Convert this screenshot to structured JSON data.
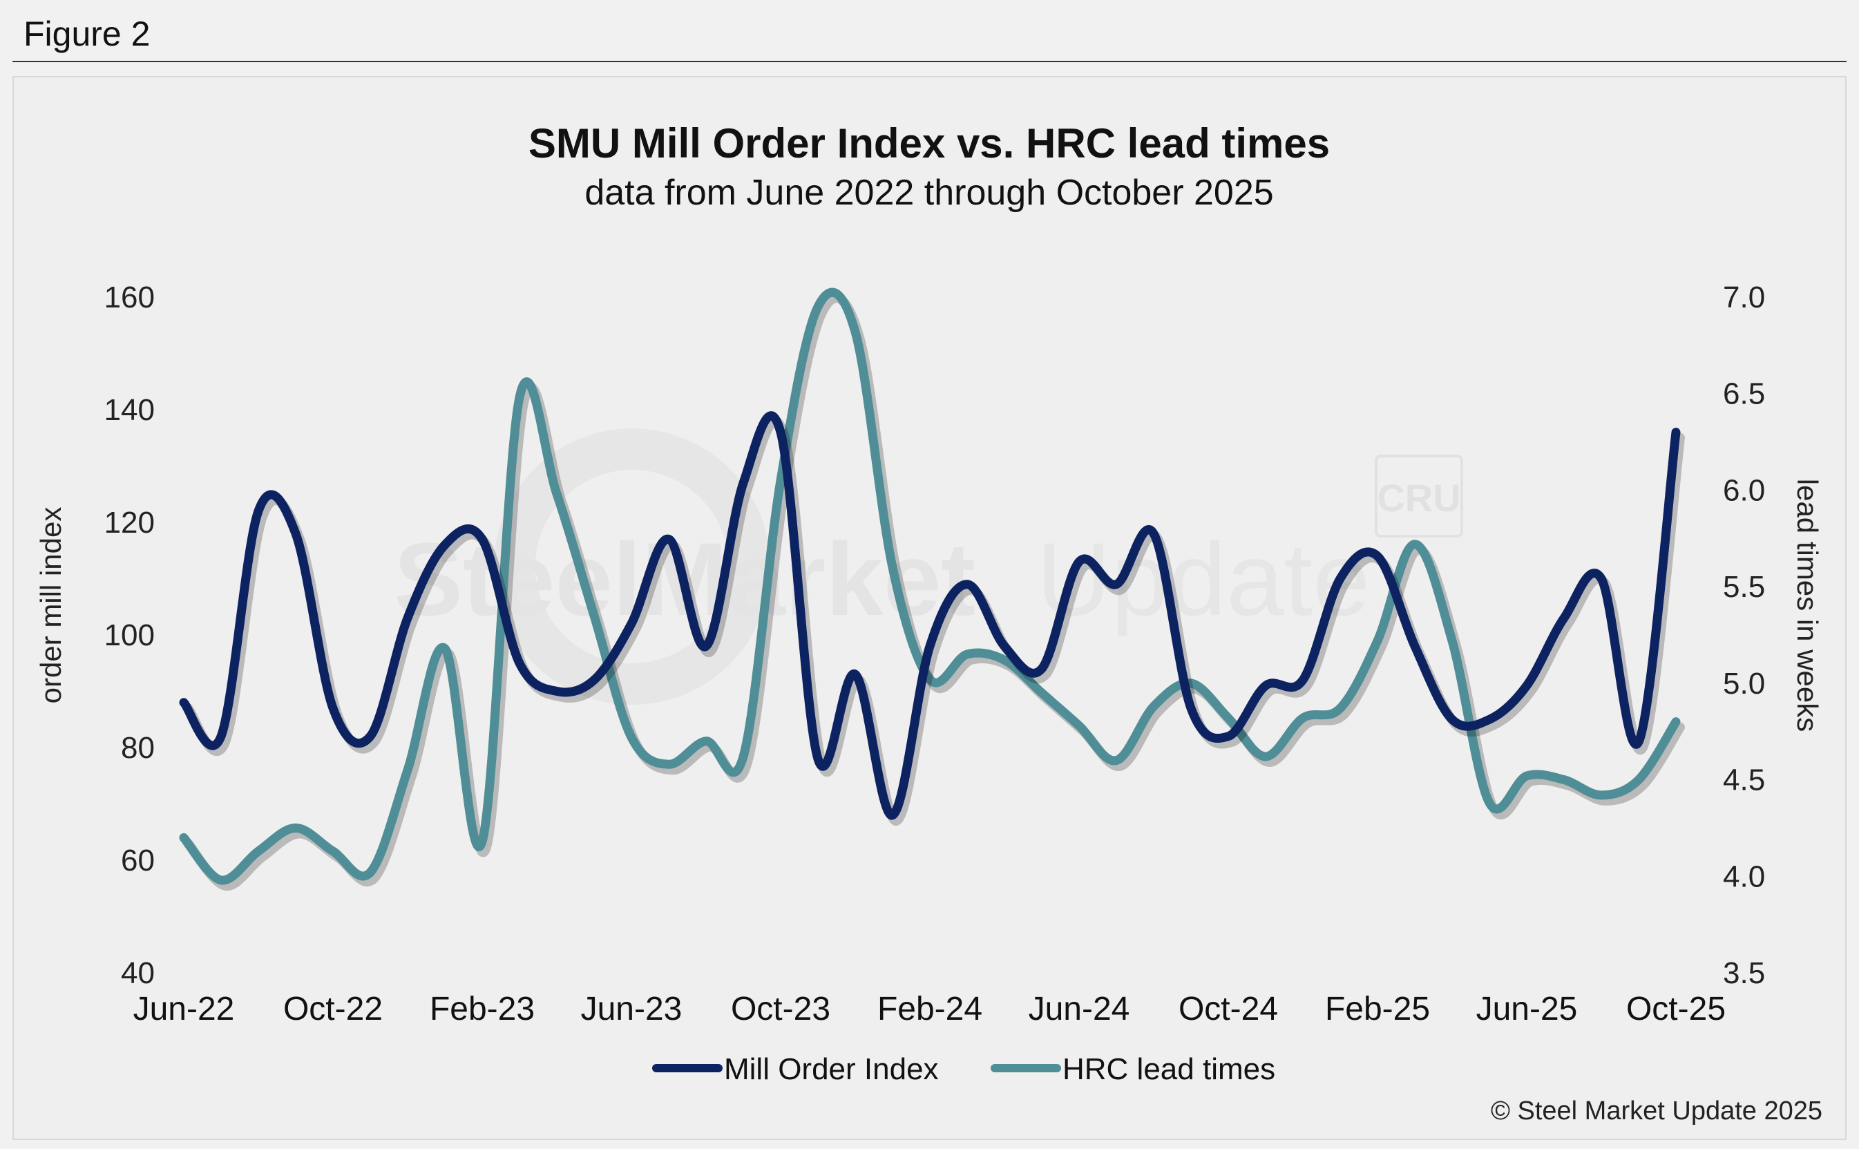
{
  "figure_label": "Figure 2",
  "copyright": "© Steel Market Update 2025",
  "watermark": {
    "brand_bold": "SteelMarket",
    "brand_light": "Update",
    "badge": "CRU"
  },
  "colors": {
    "mill_order_index": "#0d2361",
    "hrc_lead_times": "#4f8e97",
    "background": "#f1f1f1"
  },
  "chart_data": {
    "type": "line",
    "title": "SMU Mill Order Index vs. HRC lead times",
    "subtitle": "data from June 2022 through October 2025",
    "ylabel_left": "order mill index",
    "ylabel_right": "lead times in weeks",
    "ylim_left": [
      40,
      160
    ],
    "ylim_right": [
      3.5,
      7.0
    ],
    "yticks_left": [
      "40",
      "60",
      "80",
      "100",
      "120",
      "140",
      "160"
    ],
    "yticks_right": [
      "3.5",
      "4.0",
      "4.5",
      "5.0",
      "5.5",
      "6.0",
      "6.5",
      "7.0"
    ],
    "x_tick_labels": [
      "Jun-22",
      "Oct-22",
      "Feb-23",
      "Jun-23",
      "Oct-23",
      "Feb-24",
      "Jun-24",
      "Oct-24",
      "Feb-25",
      "Jun-25",
      "Oct-25"
    ],
    "x": [
      "Jun-22",
      "Jul-22",
      "Aug-22",
      "Sep-22",
      "Oct-22",
      "Nov-22",
      "Dec-22",
      "Jan-23",
      "Feb-23",
      "Mar-23",
      "Apr-23",
      "May-23",
      "Jun-23",
      "Jul-23",
      "Aug-23",
      "Sep-23",
      "Oct-23",
      "Nov-23",
      "Dec-23",
      "Jan-24",
      "Feb-24",
      "Mar-24",
      "Apr-24",
      "May-24",
      "Jun-24",
      "Jul-24",
      "Aug-24",
      "Sep-24",
      "Oct-24",
      "Nov-24",
      "Dec-24",
      "Jan-25",
      "Feb-25",
      "Mar-25",
      "Apr-25",
      "May-25",
      "Jun-25",
      "Jul-25",
      "Aug-25",
      "Sep-25",
      "Oct-25"
    ],
    "legend": [
      "Mill Order Index",
      "HRC lead times"
    ],
    "legend_position": "bottom-center",
    "grid": false,
    "series": [
      {
        "name": "Mill Order Index",
        "axis": "left",
        "values": [
          88,
          82,
          122,
          118,
          87,
          82,
          103,
          116,
          117,
          95,
          90,
          92,
          102,
          117,
          98,
          127,
          136,
          78,
          93,
          68,
          98,
          109,
          98,
          94,
          113,
          109,
          118,
          87,
          82,
          91,
          92,
          110,
          114,
          98,
          85,
          85,
          91,
          103,
          110,
          81,
          136
        ]
      },
      {
        "name": "HRC lead times",
        "axis": "right",
        "values": [
          4.2,
          3.98,
          4.13,
          4.25,
          4.13,
          4.02,
          4.55,
          5.18,
          4.18,
          6.48,
          5.98,
          5.35,
          4.72,
          4.58,
          4.7,
          4.62,
          6.05,
          6.95,
          6.82,
          5.6,
          5.02,
          5.15,
          5.12,
          4.95,
          4.78,
          4.6,
          4.88,
          5.0,
          4.82,
          4.62,
          4.82,
          4.87,
          5.22,
          5.72,
          5.22,
          4.38,
          4.52,
          4.5,
          4.42,
          4.5,
          4.8
        ]
      }
    ]
  }
}
